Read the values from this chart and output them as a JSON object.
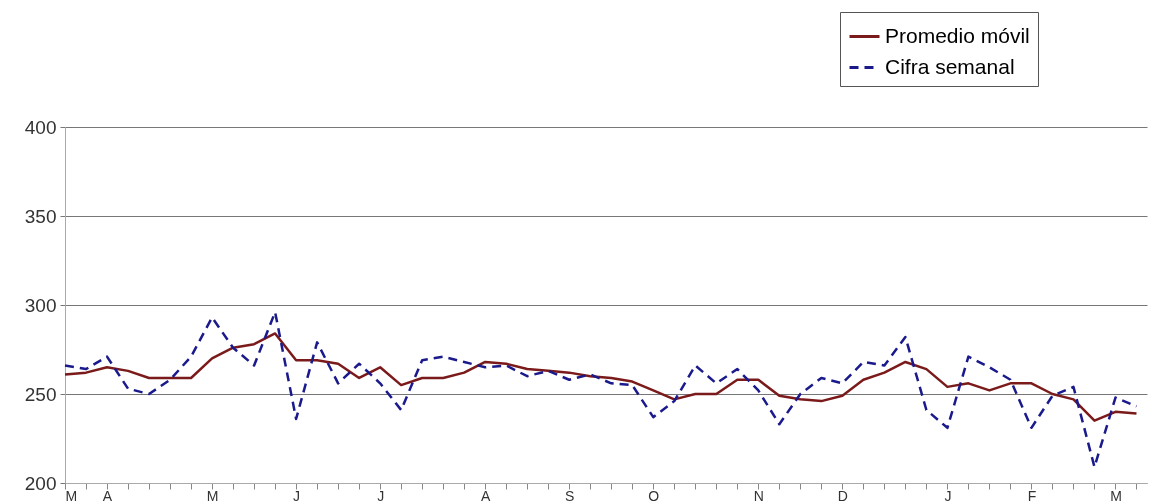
{
  "chart_data": {
    "type": "line",
    "categories": [
      "M",
      null,
      "A",
      null,
      null,
      null,
      null,
      "M",
      null,
      null,
      null,
      "J",
      null,
      null,
      null,
      "J",
      null,
      null,
      null,
      null,
      "A",
      null,
      null,
      null,
      "S",
      null,
      null,
      null,
      "O",
      null,
      null,
      null,
      null,
      "N",
      null,
      null,
      null,
      "D",
      null,
      null,
      null,
      null,
      "J",
      null,
      null,
      null,
      "F",
      null,
      null,
      null,
      "M",
      null
    ],
    "series": [
      {
        "name": "Promedio móvil",
        "color": "#7b1a1a",
        "line_style": "solid",
        "values": [
          261,
          262,
          265,
          263,
          259,
          259,
          259,
          270,
          276,
          278,
          284,
          269,
          269,
          267,
          259,
          265,
          255,
          259,
          259,
          262,
          268,
          267,
          264,
          263,
          262,
          260,
          259,
          257,
          252,
          247,
          250,
          250,
          258,
          258,
          249,
          247,
          246,
          249,
          258,
          262,
          268,
          264,
          254,
          256,
          252,
          256,
          256,
          250,
          247,
          235,
          240,
          239
        ]
      },
      {
        "name": "Cifra semanal",
        "color": "#1a1a8c",
        "line_style": "dashed",
        "values": [
          266,
          264,
          271,
          253,
          250,
          258,
          271,
          293,
          276,
          266,
          296,
          236,
          279,
          256,
          267,
          256,
          241,
          269,
          271,
          268,
          265,
          266,
          260,
          263,
          258,
          261,
          256,
          255,
          237,
          246,
          266,
          256,
          264,
          252,
          233,
          250,
          259,
          256,
          268,
          266,
          282,
          241,
          231,
          271,
          265,
          258,
          231,
          249,
          254,
          209,
          248,
          243
        ]
      }
    ],
    "ylim": [
      200,
      400
    ],
    "yticks": [
      200,
      250,
      300,
      350,
      400
    ],
    "grid": "y",
    "legend": "top right"
  }
}
